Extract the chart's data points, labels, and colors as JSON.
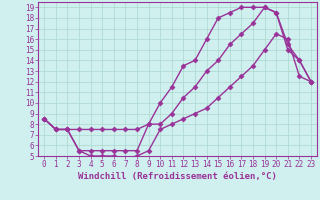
{
  "xlabel": "Windchill (Refroidissement éolien,°C)",
  "bg_color": "#cff0ee",
  "line_color": "#993399",
  "grid_color": "#aad8cc",
  "xlim": [
    -0.5,
    23.5
  ],
  "ylim": [
    5,
    19.5
  ],
  "xticks": [
    0,
    1,
    2,
    3,
    4,
    5,
    6,
    7,
    8,
    9,
    10,
    11,
    12,
    13,
    14,
    15,
    16,
    17,
    18,
    19,
    20,
    21,
    22,
    23
  ],
  "yticks": [
    5,
    6,
    7,
    8,
    9,
    10,
    11,
    12,
    13,
    14,
    15,
    16,
    17,
    18,
    19
  ],
  "series1_x": [
    0,
    1,
    2,
    3,
    4,
    5,
    6,
    7,
    8,
    9,
    10,
    11,
    12,
    13,
    14,
    15,
    16,
    17,
    18,
    19,
    20,
    21,
    22,
    23
  ],
  "series1_y": [
    8.5,
    7.5,
    7.5,
    7.5,
    7.5,
    7.5,
    7.5,
    7.5,
    7.5,
    8.0,
    10.0,
    11.5,
    13.5,
    14.0,
    16.0,
    18.0,
    18.5,
    19.0,
    19.0,
    19.0,
    18.5,
    15.0,
    14.0,
    12.0
  ],
  "series2_x": [
    0,
    1,
    2,
    3,
    4,
    5,
    6,
    7,
    8,
    9,
    10,
    11,
    12,
    13,
    14,
    15,
    16,
    17,
    18,
    19,
    20,
    21,
    22,
    23
  ],
  "series2_y": [
    8.5,
    7.5,
    7.5,
    5.5,
    5.5,
    5.5,
    5.5,
    5.5,
    5.5,
    8.0,
    8.0,
    9.0,
    10.5,
    11.5,
    13.0,
    14.0,
    15.5,
    16.5,
    17.5,
    19.0,
    18.5,
    15.5,
    14.0,
    12.0
  ],
  "series3_x": [
    0,
    1,
    2,
    3,
    4,
    5,
    6,
    7,
    8,
    9,
    10,
    11,
    12,
    13,
    14,
    15,
    16,
    17,
    18,
    19,
    20,
    21,
    22,
    23
  ],
  "series3_y": [
    8.5,
    7.5,
    7.5,
    5.5,
    5.0,
    5.0,
    5.0,
    4.8,
    5.0,
    5.5,
    7.5,
    8.0,
    8.5,
    9.0,
    9.5,
    10.5,
    11.5,
    12.5,
    13.5,
    15.0,
    16.5,
    16.0,
    12.5,
    12.0
  ],
  "marker": "D",
  "markersize": 2.5,
  "linewidth": 1.0,
  "xlabel_fontsize": 6.5,
  "tick_fontsize": 5.5,
  "tick_color": "#993399"
}
